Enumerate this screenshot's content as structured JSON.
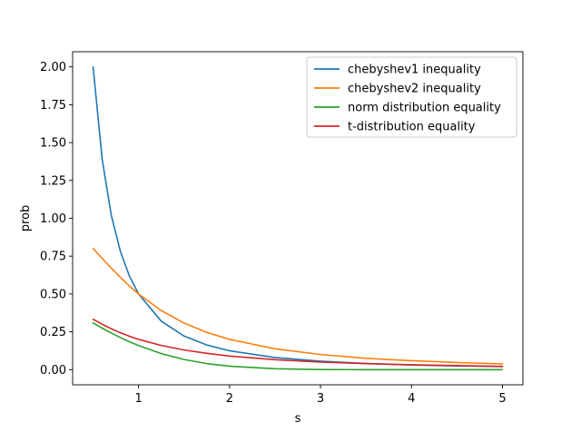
{
  "chart_data": {
    "type": "line",
    "title": "",
    "xlabel": "s",
    "ylabel": "prob",
    "xlim": [
      0.275,
      5.225
    ],
    "ylim": [
      -0.1,
      2.1
    ],
    "xticks": [
      1,
      2,
      3,
      4,
      5
    ],
    "xtick_labels": [
      "1",
      "2",
      "3",
      "4",
      "5"
    ],
    "yticks": [
      0.0,
      0.25,
      0.5,
      0.75,
      1.0,
      1.25,
      1.5,
      1.75,
      2.0
    ],
    "ytick_labels": [
      "0.00",
      "0.25",
      "0.50",
      "0.75",
      "1.00",
      "1.25",
      "1.50",
      "1.75",
      "2.00"
    ],
    "grid": false,
    "legend_position": "top-right",
    "x": [
      0.5,
      0.6,
      0.7,
      0.8,
      0.9,
      1.0,
      1.25,
      1.5,
      1.75,
      2.0,
      2.5,
      3.0,
      3.5,
      4.0,
      4.5,
      5.0
    ],
    "series": [
      {
        "name": "chebyshev1 inequality",
        "color": "#1f77b4",
        "values": [
          2.0,
          1.389,
          1.02,
          0.781,
          0.617,
          0.5,
          0.32,
          0.222,
          0.163,
          0.125,
          0.08,
          0.056,
          0.041,
          0.031,
          0.025,
          0.02
        ]
      },
      {
        "name": "chebyshev2 inequality",
        "color": "#ff7f0e",
        "values": [
          0.8,
          0.735,
          0.671,
          0.61,
          0.552,
          0.5,
          0.39,
          0.308,
          0.246,
          0.2,
          0.138,
          0.1,
          0.075,
          0.059,
          0.047,
          0.038
        ]
      },
      {
        "name": "norm distribution equality",
        "color": "#2ca02c",
        "values": [
          0.309,
          0.274,
          0.242,
          0.212,
          0.184,
          0.159,
          0.106,
          0.067,
          0.04,
          0.023,
          0.006,
          0.001,
          0.0,
          0.0,
          0.0,
          0.0
        ]
      },
      {
        "name": "t-distribution equality",
        "color": "#d62728",
        "values": [
          0.333,
          0.3,
          0.27,
          0.244,
          0.221,
          0.2,
          0.16,
          0.13,
          0.108,
          0.09,
          0.066,
          0.05,
          0.04,
          0.032,
          0.027,
          0.022
        ]
      }
    ]
  }
}
